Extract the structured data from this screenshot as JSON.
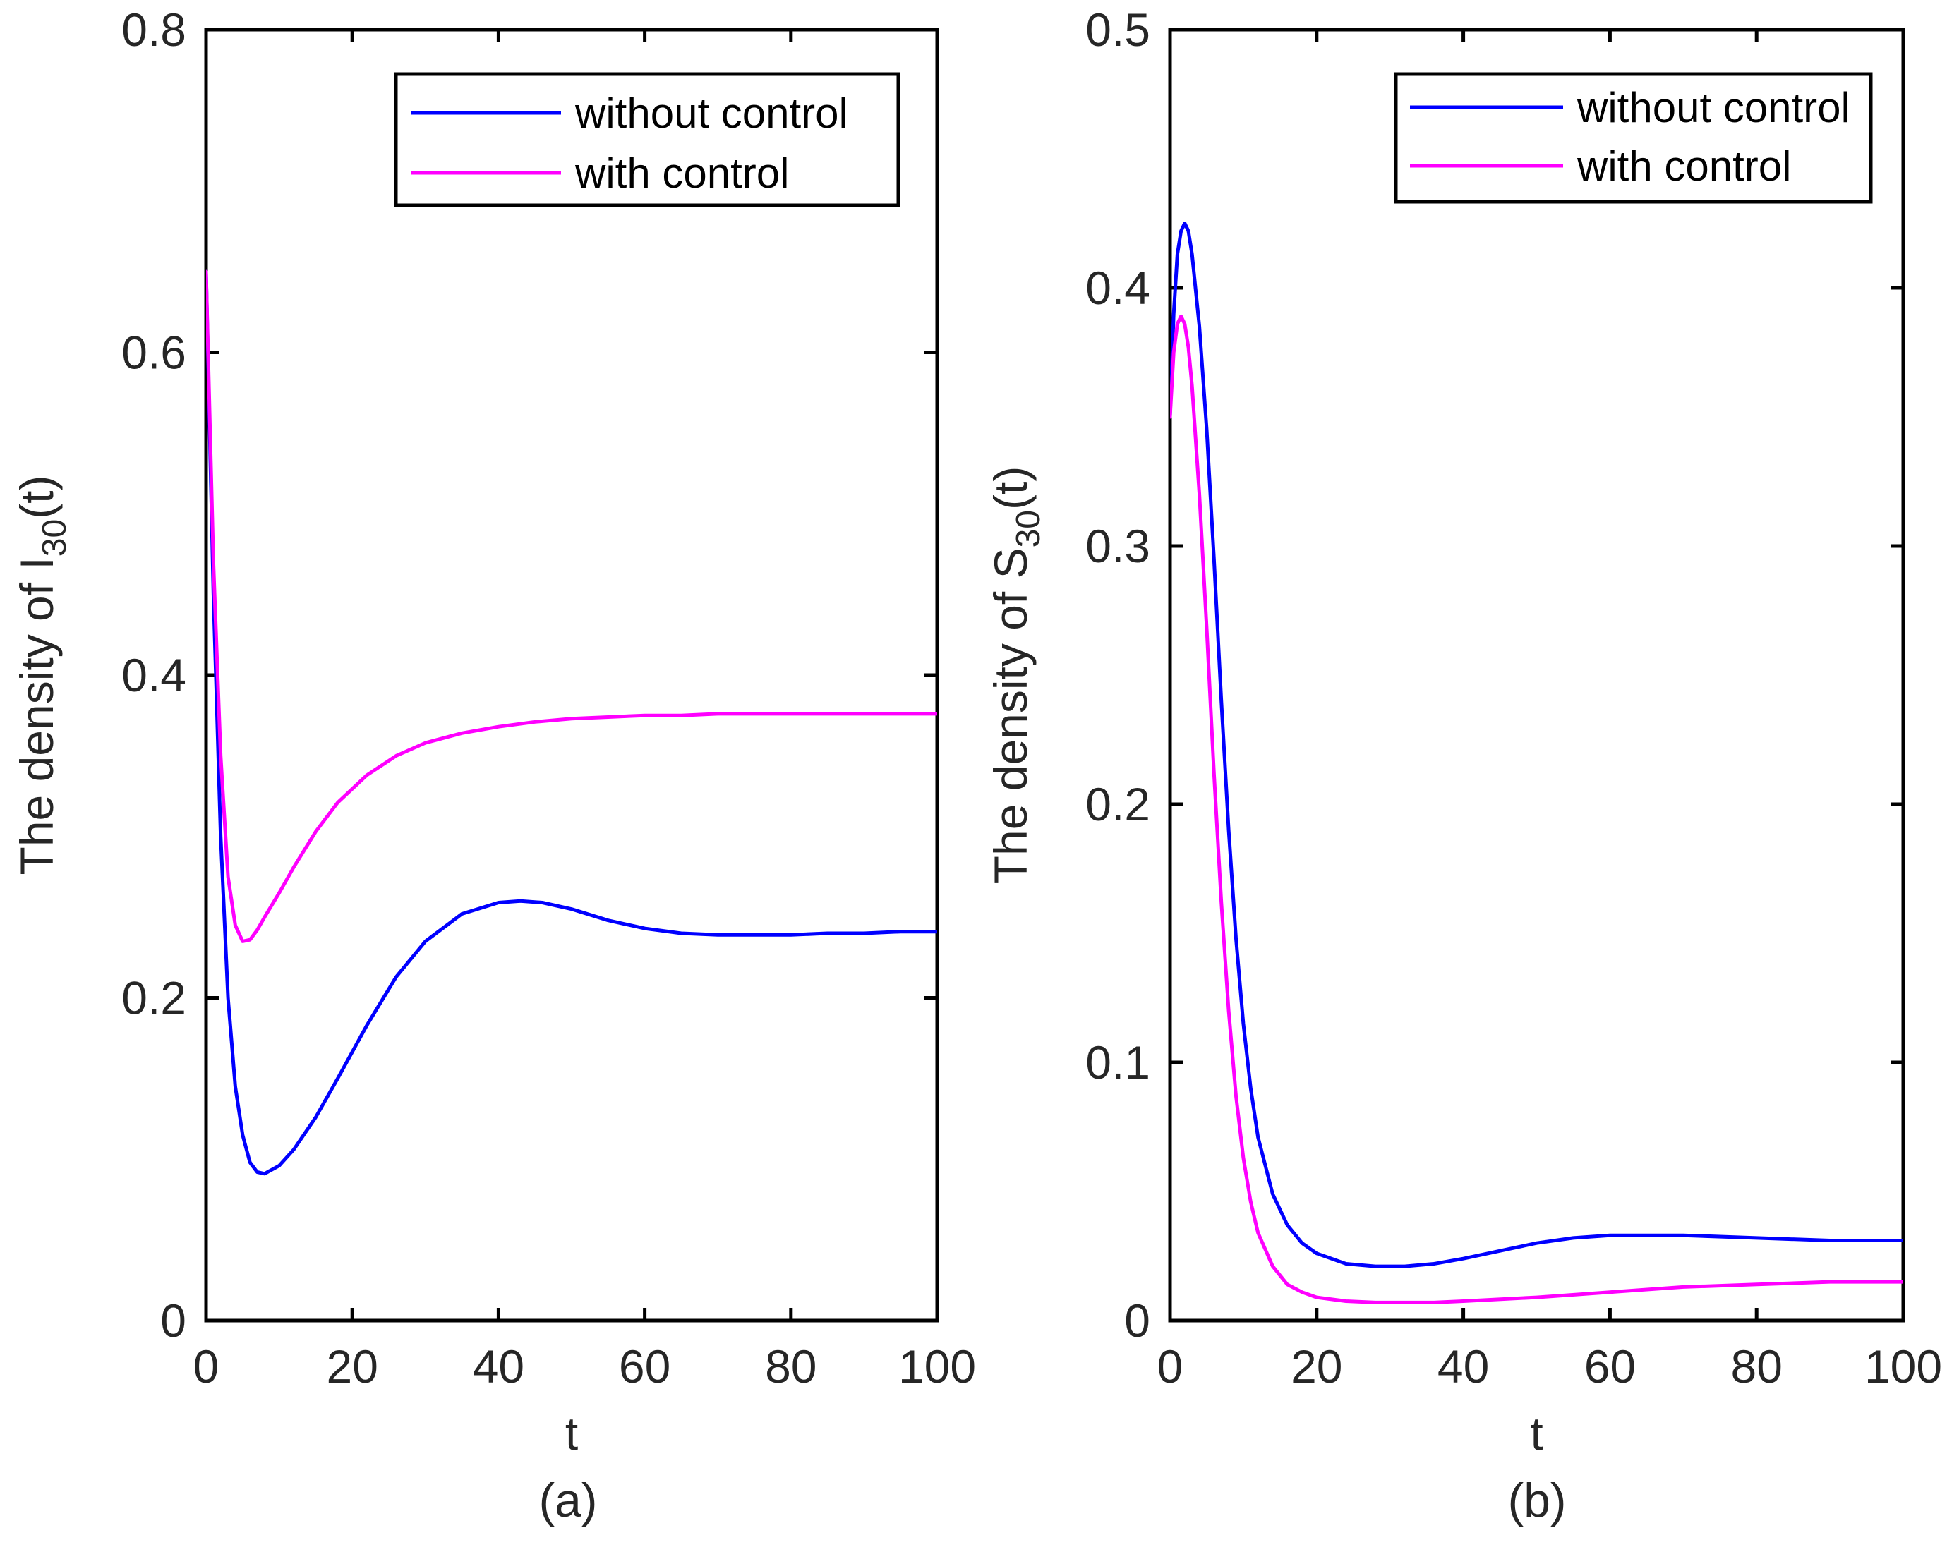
{
  "chart_data": [
    {
      "type": "line",
      "panel_label": "(a)",
      "xlabel": "t",
      "ylabel": {
        "prefix": "The density of I",
        "subscript": "30",
        "suffix": "(t)"
      },
      "xlim": [
        0,
        100
      ],
      "ylim": [
        0,
        0.8
      ],
      "xticks": [
        0,
        20,
        40,
        60,
        80,
        100
      ],
      "yticks": [
        0,
        0.2,
        0.4,
        0.6,
        0.8
      ],
      "xtick_labels": [
        "0",
        "20",
        "40",
        "60",
        "80",
        "100"
      ],
      "ytick_labels": [
        "0",
        "0.2",
        "0.4",
        "0.6",
        "0.8"
      ],
      "legend_position": "top-right",
      "series": [
        {
          "name": "without control",
          "color": "#0000ff",
          "x": [
            0,
            1,
            2,
            3,
            4,
            5,
            6,
            7,
            8,
            10,
            12,
            15,
            18,
            22,
            26,
            30,
            35,
            40,
            43,
            46,
            50,
            55,
            60,
            65,
            70,
            75,
            80,
            85,
            90,
            95,
            100
          ],
          "y": [
            0.65,
            0.45,
            0.3,
            0.2,
            0.145,
            0.115,
            0.098,
            0.092,
            0.091,
            0.096,
            0.106,
            0.126,
            0.15,
            0.183,
            0.213,
            0.235,
            0.252,
            0.259,
            0.26,
            0.259,
            0.255,
            0.248,
            0.243,
            0.24,
            0.239,
            0.239,
            0.239,
            0.24,
            0.24,
            0.241,
            0.241
          ]
        },
        {
          "name": "with control",
          "color": "#ff00ff",
          "x": [
            0,
            1,
            2,
            3,
            4,
            5,
            6,
            7,
            8,
            10,
            12,
            15,
            18,
            22,
            26,
            30,
            35,
            40,
            45,
            50,
            55,
            60,
            65,
            70,
            75,
            80,
            85,
            90,
            95,
            100
          ],
          "y": [
            0.65,
            0.47,
            0.35,
            0.275,
            0.245,
            0.235,
            0.236,
            0.242,
            0.25,
            0.265,
            0.281,
            0.303,
            0.321,
            0.338,
            0.35,
            0.358,
            0.364,
            0.368,
            0.371,
            0.373,
            0.374,
            0.375,
            0.375,
            0.376,
            0.376,
            0.376,
            0.376,
            0.376,
            0.376,
            0.376
          ]
        }
      ]
    },
    {
      "type": "line",
      "panel_label": "(b)",
      "xlabel": "t",
      "ylabel": {
        "prefix": "The density of S",
        "subscript": "30",
        "suffix": "(t)"
      },
      "xlim": [
        0,
        100
      ],
      "ylim": [
        0,
        0.5
      ],
      "xticks": [
        0,
        20,
        40,
        60,
        80,
        100
      ],
      "yticks": [
        0,
        0.1,
        0.2,
        0.3,
        0.4,
        0.5
      ],
      "xtick_labels": [
        "0",
        "20",
        "40",
        "60",
        "80",
        "100"
      ],
      "ytick_labels": [
        "0",
        "0.1",
        "0.2",
        "0.3",
        "0.4",
        "0.5"
      ],
      "legend_position": "top-right",
      "series": [
        {
          "name": "without control",
          "color": "#0000ff",
          "x": [
            0,
            0.5,
            1,
            1.5,
            2,
            2.5,
            3,
            4,
            5,
            6,
            7,
            8,
            9,
            10,
            11,
            12,
            14,
            16,
            18,
            20,
            24,
            28,
            32,
            36,
            40,
            45,
            50,
            55,
            60,
            65,
            70,
            80,
            90,
            100
          ],
          "y": [
            0.35,
            0.39,
            0.413,
            0.422,
            0.425,
            0.422,
            0.413,
            0.385,
            0.345,
            0.295,
            0.24,
            0.19,
            0.148,
            0.115,
            0.09,
            0.071,
            0.049,
            0.037,
            0.03,
            0.026,
            0.022,
            0.021,
            0.021,
            0.022,
            0.024,
            0.027,
            0.03,
            0.032,
            0.033,
            0.033,
            0.033,
            0.032,
            0.031,
            0.031
          ]
        },
        {
          "name": "with control",
          "color": "#ff00ff",
          "x": [
            0,
            0.5,
            1,
            1.5,
            2,
            2.5,
            3,
            4,
            5,
            6,
            7,
            8,
            9,
            10,
            11,
            12,
            14,
            16,
            18,
            20,
            24,
            28,
            32,
            36,
            40,
            50,
            60,
            70,
            80,
            90,
            100
          ],
          "y": [
            0.35,
            0.375,
            0.386,
            0.389,
            0.386,
            0.377,
            0.362,
            0.32,
            0.268,
            0.212,
            0.162,
            0.12,
            0.087,
            0.063,
            0.046,
            0.034,
            0.021,
            0.014,
            0.011,
            0.009,
            0.0075,
            0.007,
            0.007,
            0.007,
            0.0075,
            0.009,
            0.011,
            0.013,
            0.014,
            0.015,
            0.015
          ]
        }
      ]
    }
  ]
}
